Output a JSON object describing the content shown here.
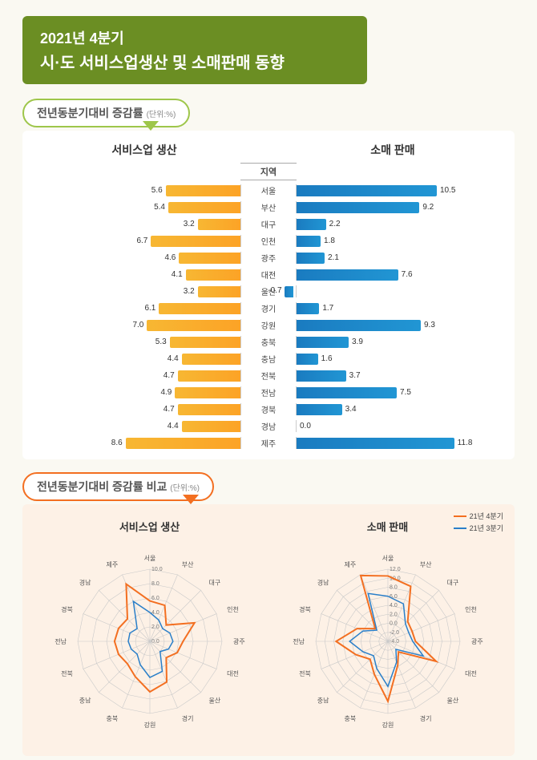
{
  "page_background": "#faf9f2",
  "header": {
    "bg_color": "#6b8e23",
    "text_color": "#ffffff",
    "line1": "2021년 4분기",
    "line2": "시·도 서비스업생산 및 소매판매 동향"
  },
  "section1": {
    "title": "전년동분기대비 증감률",
    "unit": "(단위:%)",
    "col_production": "서비스업 생산",
    "col_retail": "소매 판매",
    "region_header": "지역",
    "production_color_start": "#f7b733",
    "production_color_end": "#fca326",
    "retail_color_start": "#1a7bc0",
    "retail_color_end": "#2196d4",
    "max_value": 12,
    "rows": [
      {
        "region": "서울",
        "production": 5.6,
        "retail": 10.5
      },
      {
        "region": "부산",
        "production": 5.4,
        "retail": 9.2
      },
      {
        "region": "대구",
        "production": 3.2,
        "retail": 2.2
      },
      {
        "region": "인천",
        "production": 6.7,
        "retail": 1.8
      },
      {
        "region": "광주",
        "production": 4.6,
        "retail": 2.1
      },
      {
        "region": "대전",
        "production": 4.1,
        "retail": 7.6
      },
      {
        "region": "울산",
        "production": 3.2,
        "retail": -0.7
      },
      {
        "region": "경기",
        "production": 6.1,
        "retail": 1.7
      },
      {
        "region": "강원",
        "production": 7.0,
        "retail": 9.3
      },
      {
        "region": "충북",
        "production": 5.3,
        "retail": 3.9
      },
      {
        "region": "충남",
        "production": 4.4,
        "retail": 1.6
      },
      {
        "region": "전북",
        "production": 4.7,
        "retail": 3.7
      },
      {
        "region": "전남",
        "production": 4.9,
        "retail": 7.5
      },
      {
        "region": "경북",
        "production": 4.7,
        "retail": 3.4
      },
      {
        "region": "경남",
        "production": 4.4,
        "retail": 0.0
      },
      {
        "region": "제주",
        "production": 8.6,
        "retail": 11.8
      }
    ]
  },
  "section2": {
    "title": "전년동분기대비 증감률 비교",
    "unit": "(단위:%)",
    "panel_bg": "#fdf1e6",
    "legend": [
      {
        "label": "21년 4분기",
        "color": "#f36f21"
      },
      {
        "label": "21년 3분기",
        "color": "#2a7fc9"
      }
    ],
    "axes": [
      "서울",
      "부산",
      "대구",
      "인천",
      "광주",
      "대전",
      "울산",
      "경기",
      "강원",
      "충북",
      "충남",
      "전북",
      "전남",
      "경북",
      "경남",
      "제주"
    ],
    "charts": [
      {
        "title": "서비스업 생산",
        "ticks": [
          0.0,
          2.0,
          4.0,
          6.0,
          8.0,
          10.0
        ],
        "max": 10,
        "series": [
          {
            "name": "q4",
            "color": "#f36f21",
            "width": 2,
            "values": [
              5.6,
              5.4,
              3.2,
              6.7,
              4.6,
              4.1,
              3.2,
              6.1,
              7.0,
              5.3,
              4.4,
              4.7,
              4.9,
              4.7,
              4.4,
              8.6
            ]
          },
          {
            "name": "q3",
            "color": "#2a7fc9",
            "width": 1.5,
            "values": [
              4.0,
              3.2,
              2.5,
              3.0,
              3.2,
              2.8,
              2.0,
              4.5,
              5.0,
              3.5,
              2.5,
              2.8,
              3.0,
              3.0,
              2.5,
              6.0
            ]
          }
        ]
      },
      {
        "title": "소매 판매",
        "ticks": [
          -4.0,
          -2.0,
          0.0,
          2.0,
          4.0,
          6.0,
          8.0,
          10.0,
          12.0
        ],
        "min": -4,
        "max": 12,
        "series": [
          {
            "name": "q4",
            "color": "#f36f21",
            "width": 2,
            "values": [
              10.5,
              9.2,
              2.2,
              1.8,
              2.1,
              7.6,
              -0.7,
              1.7,
              9.3,
              3.9,
              1.6,
              3.7,
              7.5,
              3.4,
              0.0,
              11.8
            ]
          },
          {
            "name": "q3",
            "color": "#2a7fc9",
            "width": 1.5,
            "values": [
              6.0,
              5.0,
              1.5,
              1.0,
              1.5,
              4.5,
              -1.5,
              1.0,
              6.0,
              2.5,
              0.5,
              2.0,
              4.5,
              2.0,
              -0.5,
              7.5
            ]
          }
        ]
      }
    ],
    "grid_color": "#c9c9c9"
  }
}
